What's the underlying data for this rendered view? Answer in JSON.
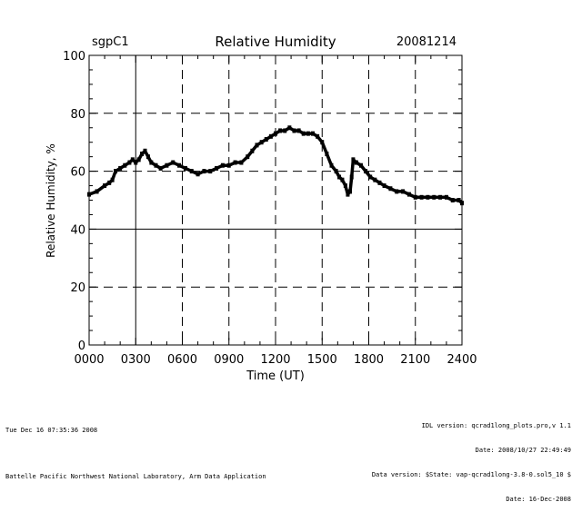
{
  "chart_data": {
    "type": "scatter",
    "title": "Relative Humidity",
    "site_label": "sgpC1",
    "date_label": "20081214",
    "xlabel": "Time (UT)",
    "ylabel": "Relative Humidity, %",
    "xlim": [
      0,
      2400
    ],
    "ylim": [
      0,
      100
    ],
    "x_ticks": [
      {
        "value": 0,
        "label": "0000"
      },
      {
        "value": 300,
        "label": "0300"
      },
      {
        "value": 600,
        "label": "0600"
      },
      {
        "value": 900,
        "label": "0900"
      },
      {
        "value": 1200,
        "label": "1200"
      },
      {
        "value": 1500,
        "label": "1500"
      },
      {
        "value": 1800,
        "label": "1800"
      },
      {
        "value": 2100,
        "label": "2100"
      },
      {
        "value": 2400,
        "label": "2400"
      }
    ],
    "y_ticks": [
      {
        "value": 0,
        "label": "0"
      },
      {
        "value": 20,
        "label": "20"
      },
      {
        "value": 40,
        "label": "40"
      },
      {
        "value": 60,
        "label": "60"
      },
      {
        "value": 80,
        "label": "80"
      },
      {
        "value": 100,
        "label": "100"
      }
    ],
    "grid": true,
    "series": [
      {
        "name": "Relative Humidity",
        "x": [
          0,
          50,
          100,
          130,
          150,
          170,
          200,
          230,
          260,
          280,
          300,
          320,
          340,
          360,
          380,
          400,
          430,
          460,
          500,
          540,
          580,
          620,
          660,
          700,
          740,
          780,
          820,
          860,
          900,
          940,
          980,
          1020,
          1050,
          1080,
          1110,
          1140,
          1170,
          1200,
          1230,
          1260,
          1290,
          1320,
          1350,
          1380,
          1410,
          1440,
          1470,
          1500,
          1530,
          1560,
          1590,
          1610,
          1630,
          1650,
          1665,
          1680,
          1690,
          1700,
          1720,
          1750,
          1780,
          1810,
          1840,
          1870,
          1900,
          1940,
          1980,
          2020,
          2060,
          2100,
          2140,
          2180,
          2220,
          2260,
          2300,
          2340,
          2380,
          2400
        ],
        "y": [
          52,
          53,
          55,
          56,
          57,
          60,
          61,
          62,
          63,
          64,
          63,
          64,
          66,
          67,
          65,
          63,
          62,
          61,
          62,
          63,
          62,
          61,
          60,
          59,
          60,
          60,
          61,
          62,
          62,
          63,
          63,
          65,
          67,
          69,
          70,
          71,
          72,
          73,
          74,
          74,
          75,
          74,
          74,
          73,
          73,
          73,
          72,
          70,
          66,
          62,
          60,
          58,
          57,
          55,
          52,
          53,
          58,
          64,
          63,
          62,
          60,
          58,
          57,
          56,
          55,
          54,
          53,
          53,
          52,
          51,
          51,
          51,
          51,
          51,
          51,
          50,
          50,
          49
        ]
      }
    ]
  },
  "footer": {
    "timestamp": "Tue Dec 16 07:35:36 2008",
    "lab": "Battelle Pacific Northwest National Laboratory, Arm Data Application",
    "idl_version": "IDL version: qcrad1long_plots.pro,v 1.1",
    "file_date": "Date: 2008/10/27 22:49:49",
    "data_version": "Data version: $State: vap-qcrad1long-3.8-0.sol5_10 $",
    "data_date": "Date: 16-Dec-2008"
  }
}
